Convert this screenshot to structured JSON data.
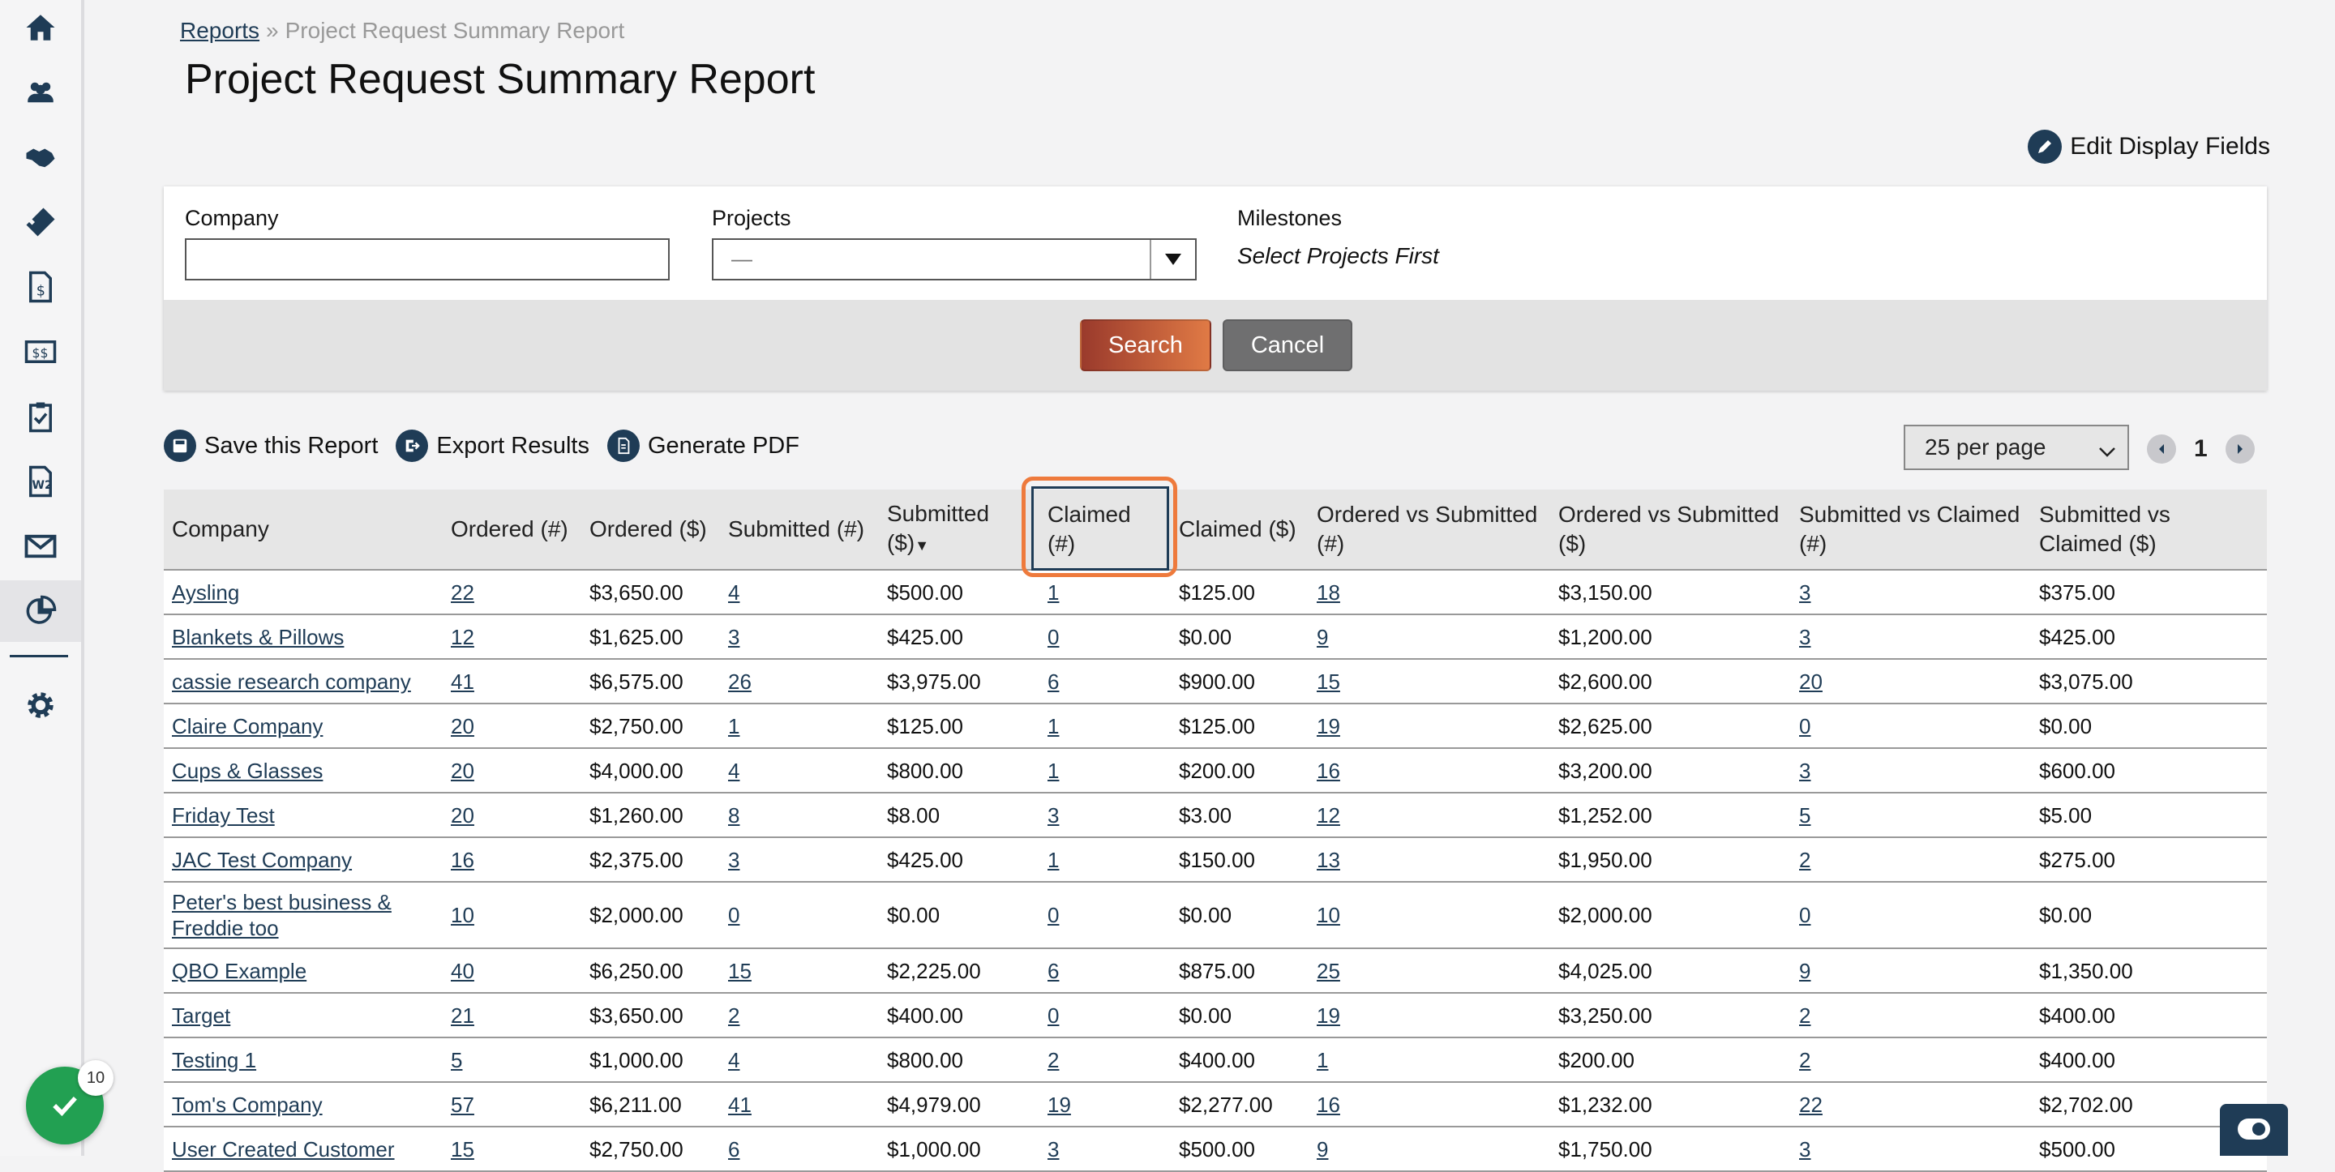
{
  "breadcrumb": {
    "root": "Reports",
    "separator": "»",
    "current": "Project Request Summary Report"
  },
  "page": {
    "title": "Project Request Summary Report",
    "edit_fields_label": "Edit Display Fields"
  },
  "filters": {
    "company_label": "Company",
    "company_value": "",
    "projects_label": "Projects",
    "projects_value": "—",
    "milestones_label": "Milestones",
    "milestones_note": "Select Projects First",
    "search_label": "Search",
    "cancel_label": "Cancel"
  },
  "actions": {
    "save": "Save this Report",
    "export": "Export Results",
    "pdf": "Generate PDF"
  },
  "pagination": {
    "per_page": "25 per page",
    "current_page": "1"
  },
  "table": {
    "headers": {
      "company": "Company",
      "ordered_n": "Ordered (#)",
      "ordered_d": "Ordered ($)",
      "submitted_n": "Submitted (#)",
      "submitted_d": "Submitted ($)",
      "claimed_n": "Claimed (#)",
      "claimed_d": "Claimed ($)",
      "ovs_n": "Ordered vs Submitted (#)",
      "ovs_d": "Ordered vs Submitted ($)",
      "svc_n": "Submitted vs Claimed (#)",
      "svc_d": "Submitted vs Claimed ($)"
    },
    "sorted_column": "submitted_d",
    "rows": [
      [
        "Aysling",
        "22",
        "$3,650.00",
        "4",
        "$500.00",
        "1",
        "$125.00",
        "18",
        "$3,150.00",
        "3",
        "$375.00"
      ],
      [
        "Blankets & Pillows",
        "12",
        "$1,625.00",
        "3",
        "$425.00",
        "0",
        "$0.00",
        "9",
        "$1,200.00",
        "3",
        "$425.00"
      ],
      [
        "cassie research company",
        "41",
        "$6,575.00",
        "26",
        "$3,975.00",
        "6",
        "$900.00",
        "15",
        "$2,600.00",
        "20",
        "$3,075.00"
      ],
      [
        "Claire Company",
        "20",
        "$2,750.00",
        "1",
        "$125.00",
        "1",
        "$125.00",
        "19",
        "$2,625.00",
        "0",
        "$0.00"
      ],
      [
        "Cups & Glasses",
        "20",
        "$4,000.00",
        "4",
        "$800.00",
        "1",
        "$200.00",
        "16",
        "$3,200.00",
        "3",
        "$600.00"
      ],
      [
        "Friday Test",
        "20",
        "$1,260.00",
        "8",
        "$8.00",
        "3",
        "$3.00",
        "12",
        "$1,252.00",
        "5",
        "$5.00"
      ],
      [
        "JAC Test Company",
        "16",
        "$2,375.00",
        "3",
        "$425.00",
        "1",
        "$150.00",
        "13",
        "$1,950.00",
        "2",
        "$275.00"
      ],
      [
        "Peter's best business & Freddie too",
        "10",
        "$2,000.00",
        "0",
        "$0.00",
        "0",
        "$0.00",
        "10",
        "$2,000.00",
        "0",
        "$0.00"
      ],
      [
        "QBO Example",
        "40",
        "$6,250.00",
        "15",
        "$2,225.00",
        "6",
        "$875.00",
        "25",
        "$4,025.00",
        "9",
        "$1,350.00"
      ],
      [
        "Target",
        "21",
        "$3,650.00",
        "2",
        "$400.00",
        "0",
        "$0.00",
        "19",
        "$3,250.00",
        "2",
        "$400.00"
      ],
      [
        "Testing 1",
        "5",
        "$1,000.00",
        "4",
        "$800.00",
        "2",
        "$400.00",
        "1",
        "$200.00",
        "2",
        "$400.00"
      ],
      [
        "Tom's Company",
        "57",
        "$6,211.00",
        "41",
        "$4,979.00",
        "19",
        "$2,277.00",
        "16",
        "$1,232.00",
        "22",
        "$2,702.00"
      ],
      [
        "User Created Customer",
        "15",
        "$2,750.00",
        "6",
        "$1,000.00",
        "3",
        "$500.00",
        "9",
        "$1,750.00",
        "3",
        "$500.00"
      ]
    ]
  },
  "fab": {
    "badge": "10"
  },
  "nav": [
    "home-icon",
    "users-icon",
    "handshake-icon",
    "ticket-icon",
    "invoice-icon",
    "payments-icon",
    "clipboard-check-icon",
    "w2-icon",
    "mail-icon",
    "reports-icon",
    "gear-icon"
  ]
}
